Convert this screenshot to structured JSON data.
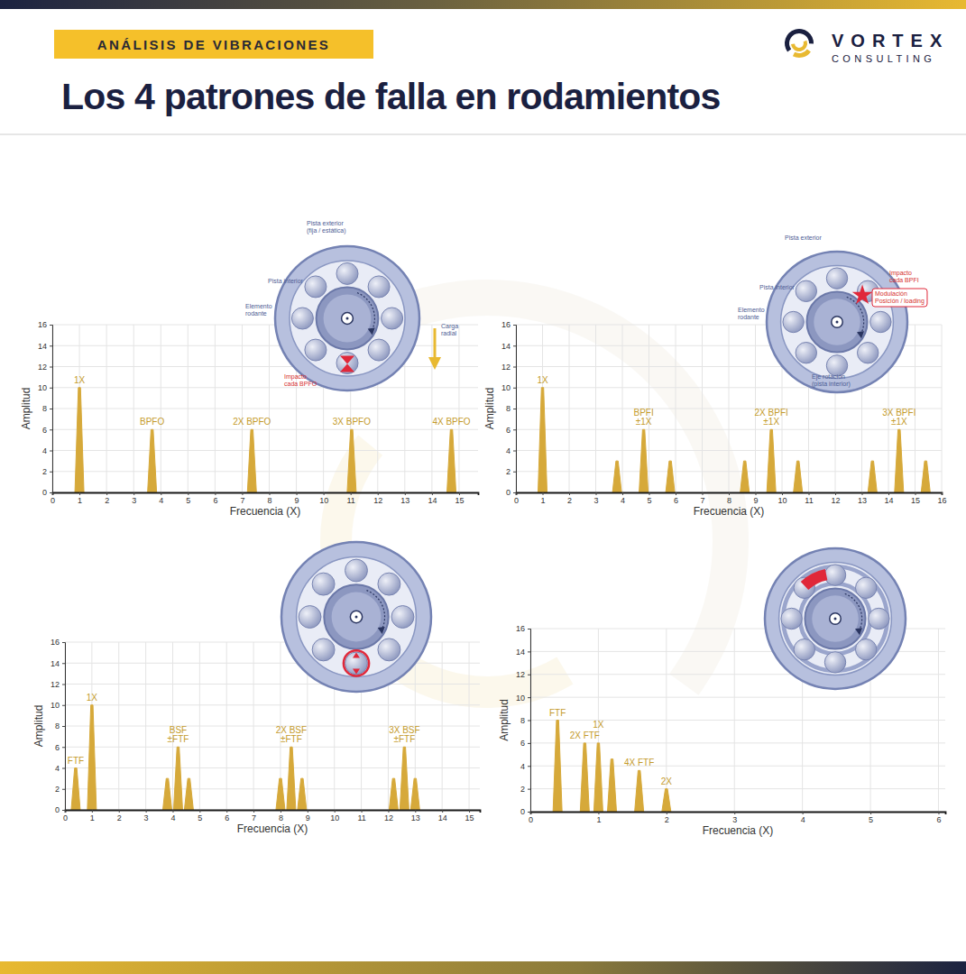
{
  "header": {
    "badge": "ANÁLISIS DE VIBRACIONES",
    "title": "Los 4 patrones de falla en rodamientos",
    "brand": "VORTEX",
    "brand_sub": "CONSULTING"
  },
  "chart_data": [
    {
      "type": "spectrum",
      "xlabel": "Frecuencia (X)",
      "ylabel": "Amplitud",
      "x": [
        1,
        3.68,
        7.36,
        11.04,
        14.72
      ],
      "values": [
        10,
        6,
        6,
        6,
        6
      ],
      "peak_labels": [
        "1X",
        "BPFO",
        "2X BPFO",
        "3X BPFO",
        "4X BPFO"
      ],
      "xlim": [
        0,
        15.7
      ],
      "xticks": [
        0,
        1,
        2,
        3,
        4,
        5,
        6,
        7,
        8,
        9,
        10,
        11,
        12,
        13,
        14,
        15
      ],
      "ylim": [
        0,
        16
      ],
      "yticks": [
        0,
        2,
        4,
        6,
        8,
        10,
        12,
        14,
        16
      ],
      "grid": true,
      "color": "#d6a93a",
      "diagram_labels": [
        "Pista exterior\n(fija / estática)",
        "Pista interior",
        "Elemento\nrodante",
        "Carga\nradial",
        "Impacto\ncada BPFO"
      ]
    },
    {
      "type": "spectrum",
      "xlabel": "Frecuencia (X)",
      "ylabel": "Amplitud",
      "x": [
        1,
        3.8,
        4.8,
        5.8,
        8.6,
        9.6,
        10.6,
        13.4,
        14.4,
        15.4
      ],
      "values": [
        10,
        3,
        6,
        3,
        3,
        6,
        3,
        3,
        6,
        3
      ],
      "peak_labels": [
        "1X",
        null,
        "BPFI\n±1X",
        null,
        null,
        "2X BPFI\n±1X",
        null,
        null,
        "3X BPFI\n±1X",
        null
      ],
      "xlim": [
        0,
        16
      ],
      "xticks": [
        0,
        1,
        2,
        3,
        4,
        5,
        6,
        7,
        8,
        9,
        10,
        11,
        12,
        13,
        14,
        15,
        16
      ],
      "ylim": [
        0,
        16
      ],
      "yticks": [
        0,
        2,
        4,
        6,
        8,
        10,
        12,
        14,
        16
      ],
      "grid": true,
      "color": "#d6a93a",
      "diagram_labels": [
        "Pista exterior",
        "Pista interior",
        "Elemento\nrodante",
        "Impacto\ncada BPFI",
        "Modulación\nPosición / loading",
        "Eje rotación\n(pista interior)"
      ]
    },
    {
      "type": "spectrum",
      "xlabel": "Frecuencia (X)",
      "ylabel": "Amplitud",
      "x": [
        0.4,
        1,
        3.8,
        4.2,
        4.6,
        8.0,
        8.4,
        8.8,
        12.2,
        12.6,
        13.0
      ],
      "values": [
        4,
        10,
        3,
        6,
        3,
        3,
        6,
        3,
        3,
        6,
        3
      ],
      "peak_labels": [
        "FTF",
        "1X",
        null,
        "BSF\n±FTF",
        null,
        null,
        "2X BSF\n±FTF",
        null,
        null,
        "3X BSF\n±FTF",
        null
      ],
      "xlim": [
        0,
        15.4
      ],
      "xticks": [
        0,
        1,
        2,
        3,
        4,
        5,
        6,
        7,
        8,
        9,
        10,
        11,
        12,
        13,
        14,
        15
      ],
      "ylim": [
        0,
        16
      ],
      "yticks": [
        0,
        2,
        4,
        6,
        8,
        10,
        12,
        14,
        16
      ],
      "grid": true,
      "color": "#d6a93a"
    },
    {
      "type": "spectrum",
      "xlabel": "Frecuencia (X)",
      "ylabel": "Amplitud",
      "x": [
        0.4,
        0.8,
        1.0,
        1.2,
        1.6,
        2.0
      ],
      "values": [
        8,
        6,
        6,
        4.6,
        3.6,
        2
      ],
      "peak_labels": [
        "FTF",
        "2X FTF",
        "1X",
        null,
        "4X FTF",
        "2X"
      ],
      "xlim": [
        0,
        6.1
      ],
      "xticks": [
        0,
        1,
        2,
        3,
        4,
        5,
        6
      ],
      "ylim": [
        0,
        16
      ],
      "yticks": [
        0,
        2,
        4,
        6,
        8,
        10,
        12,
        14,
        16
      ],
      "grid": true,
      "color": "#d6a93a"
    }
  ]
}
